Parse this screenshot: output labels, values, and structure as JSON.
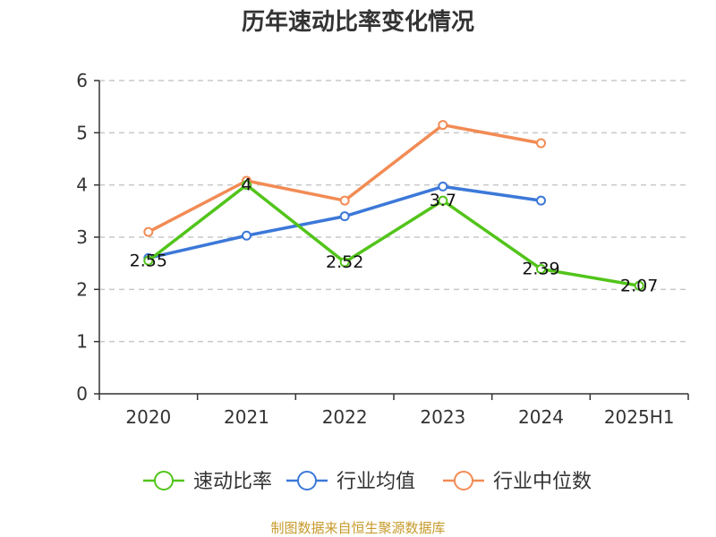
{
  "chart_data": {
    "type": "line",
    "title": "历年速动比率变化情况",
    "categories": [
      "2020",
      "2021",
      "2022",
      "2023",
      "2024",
      "2025H1"
    ],
    "y_ticks": [
      "0",
      "1",
      "2",
      "3",
      "4",
      "5",
      "6"
    ],
    "ylim": [
      0,
      6
    ],
    "grid": true,
    "legend_position": "bottom",
    "series": [
      {
        "name": "速动比率",
        "color": "#52c41a",
        "values": [
          2.55,
          4,
          2.52,
          3.7,
          2.39,
          2.07
        ],
        "labels": [
          "2.55",
          "4",
          "2.52",
          "3.7",
          "2.39",
          "2.07"
        ]
      },
      {
        "name": "行业均值",
        "color": "#3c78d8",
        "values": [
          2.6,
          3.03,
          3.4,
          3.97,
          3.7,
          null
        ]
      },
      {
        "name": "行业中位数",
        "color": "#f28b54",
        "values": [
          3.1,
          4.08,
          3.7,
          5.15,
          4.8,
          null
        ]
      }
    ]
  },
  "footer": {
    "source": "制图数据来自恒生聚源数据库"
  }
}
